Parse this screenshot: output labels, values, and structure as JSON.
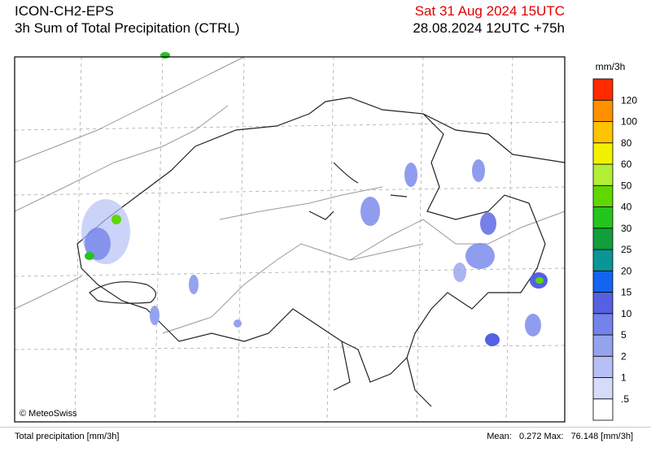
{
  "header": {
    "model": "ICON-CH2-EPS",
    "field": "3h Sum of Total Precipitation (CTRL)",
    "valid_time": "Sat 31 Aug 2024 15UTC",
    "run_time": "28.08.2024 12UTC +75h"
  },
  "legend": {
    "unit": "mm/3h",
    "colors": [
      "#ffffff",
      "#d6dbfa",
      "#b6c0f5",
      "#95a3ef",
      "#7483ea",
      "#5660e2",
      "#1464f0",
      "#0a9696",
      "#129e3c",
      "#26c41e",
      "#5ed800",
      "#b2ee34",
      "#f2f200",
      "#ffc400",
      "#ff9000",
      "#ff2a00"
    ],
    "labels": [
      ".5",
      "1",
      "2",
      "5",
      "10",
      "15",
      "20",
      "25",
      "30",
      "40",
      "50",
      "60",
      "80",
      "100",
      "120"
    ]
  },
  "map": {
    "credit": "© MeteoSwiss"
  },
  "footer": {
    "left": "Total precipitation [mm/3h]",
    "right": "Mean:   0.272 Max:   76.148 [mm/3h]"
  }
}
